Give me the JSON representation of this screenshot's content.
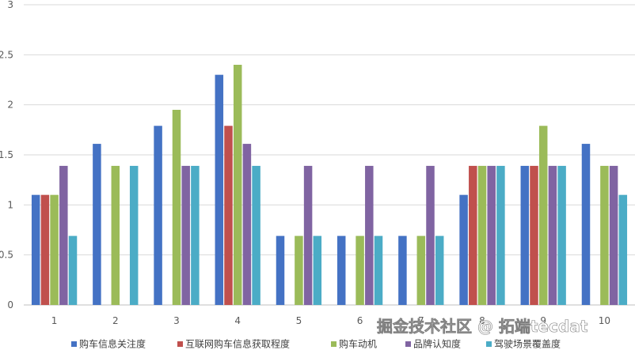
{
  "chart_data": {
    "type": "bar",
    "title": "",
    "xlabel": "",
    "ylabel": "",
    "categories": [
      "1",
      "2",
      "3",
      "4",
      "5",
      "6",
      "7",
      "8",
      "9",
      "10"
    ],
    "ylim": [
      0,
      3
    ],
    "yticks": [
      0,
      0.5,
      1,
      1.5,
      2,
      2.5,
      3
    ],
    "ytick_labels": [
      "0",
      "0.5",
      "1",
      "1.5",
      "2",
      "2.5",
      "3"
    ],
    "grid": true,
    "legend_position": "bottom",
    "series": [
      {
        "name": "购车信息关注度",
        "color": "#4472c4",
        "values": [
          1.1,
          1.61,
          1.79,
          2.3,
          0.69,
          0.69,
          0.69,
          1.1,
          1.39,
          1.61
        ]
      },
      {
        "name": "互联网购车信息获取程度",
        "color": "#c0504d",
        "values": [
          1.1,
          0,
          0,
          1.79,
          0,
          0,
          0,
          1.39,
          1.39,
          0
        ]
      },
      {
        "name": "购车动机",
        "color": "#9bbb59",
        "values": [
          1.1,
          1.39,
          1.95,
          2.4,
          0.69,
          0.69,
          0.69,
          1.39,
          1.79,
          1.39
        ]
      },
      {
        "name": "品牌认知度",
        "color": "#8064a2",
        "values": [
          1.39,
          0,
          1.39,
          1.61,
          1.39,
          1.39,
          1.39,
          1.39,
          1.39,
          1.39
        ]
      },
      {
        "name": "驾驶场景覆盖度",
        "color": "#4bacc6",
        "values": [
          0.69,
          1.39,
          1.39,
          1.39,
          0.69,
          0.69,
          0.69,
          1.39,
          1.39,
          1.1
        ]
      }
    ]
  },
  "watermark": "掘金技术社区 @ 拓端tecdat"
}
